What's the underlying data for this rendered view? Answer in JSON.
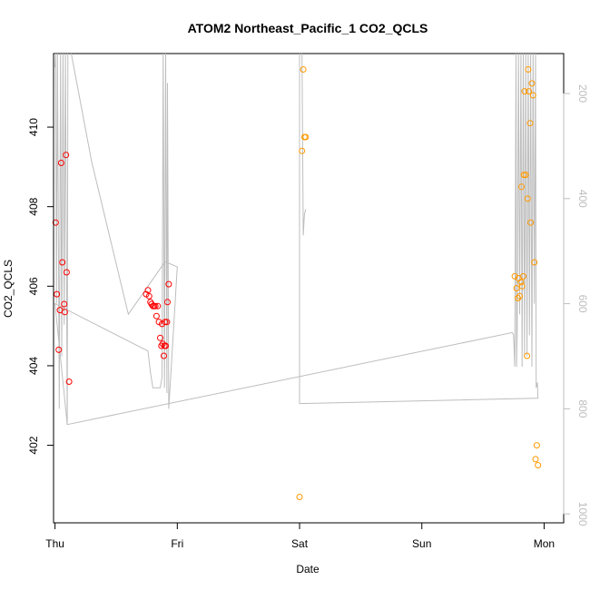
{
  "chart_data": {
    "type": "scatter",
    "title": "ATOM2 Northeast_Pacific_1 CO2_QCLS",
    "xlabel": "Date",
    "ylabel": "CO2_QCLS",
    "x_ticks": [
      "Thu",
      "Fri",
      "Sat",
      "Sun",
      "Mon"
    ],
    "xlim": [
      -0.012,
      4.16
    ],
    "ylim": [
      400.05,
      411.85
    ],
    "y_ticks": [
      402,
      404,
      406,
      408,
      410
    ],
    "y2_ticks": [
      200,
      400,
      600,
      800,
      1000
    ],
    "y2lim": [
      1017,
      124
    ],
    "colors": {
      "red": "#ff0000",
      "orange": "#ff9900",
      "gray": "#bdbdbd"
    },
    "series": [
      {
        "color": "red",
        "points": [
          [
            0.005,
            407.6
          ],
          [
            0.015,
            405.8
          ],
          [
            0.03,
            404.4
          ],
          [
            0.04,
            405.4
          ],
          [
            0.05,
            409.1
          ],
          [
            0.06,
            406.6
          ],
          [
            0.075,
            405.55
          ],
          [
            0.08,
            405.35
          ],
          [
            0.09,
            409.3
          ],
          [
            0.095,
            406.35
          ],
          [
            0.115,
            403.6
          ],
          [
            0.745,
            405.8
          ],
          [
            0.76,
            405.9
          ],
          [
            0.77,
            405.75
          ],
          [
            0.78,
            405.6
          ],
          [
            0.79,
            405.55
          ],
          [
            0.8,
            405.5
          ],
          [
            0.81,
            405.5
          ],
          [
            0.82,
            405.5
          ],
          [
            0.83,
            405.25
          ],
          [
            0.84,
            405.5
          ],
          [
            0.85,
            405.1
          ],
          [
            0.86,
            404.7
          ],
          [
            0.87,
            404.5
          ],
          [
            0.875,
            405.05
          ],
          [
            0.88,
            404.55
          ],
          [
            0.89,
            404.25
          ],
          [
            0.895,
            404.5
          ],
          [
            0.9,
            405.1
          ],
          [
            0.905,
            404.5
          ],
          [
            0.915,
            405.1
          ],
          [
            0.92,
            405.6
          ],
          [
            0.93,
            406.05
          ]
        ]
      },
      {
        "color": "orange",
        "points": [
          [
            2.0,
            400.7
          ],
          [
            2.02,
            409.4
          ],
          [
            2.03,
            411.45
          ],
          [
            2.04,
            409.75
          ],
          [
            2.05,
            409.75
          ],
          [
            3.76,
            406.25
          ],
          [
            3.775,
            405.95
          ],
          [
            3.785,
            405.7
          ],
          [
            3.79,
            406.2
          ],
          [
            3.8,
            405.75
          ],
          [
            3.81,
            406.1
          ],
          [
            3.815,
            408.5
          ],
          [
            3.82,
            406.0
          ],
          [
            3.83,
            406.25
          ],
          [
            3.835,
            408.8
          ],
          [
            3.84,
            410.9
          ],
          [
            3.85,
            408.8
          ],
          [
            3.86,
            404.25
          ],
          [
            3.865,
            408.2
          ],
          [
            3.87,
            411.45
          ],
          [
            3.875,
            410.9
          ],
          [
            3.885,
            410.1
          ],
          [
            3.89,
            407.6
          ],
          [
            3.9,
            411.1
          ],
          [
            3.91,
            410.8
          ],
          [
            3.92,
            406.6
          ],
          [
            3.93,
            401.65
          ],
          [
            3.94,
            402.0
          ],
          [
            3.95,
            401.5
          ]
        ]
      },
      {
        "color": "gray",
        "axis": "right",
        "points": [
          [
            0.0,
            150
          ],
          [
            0.005,
            120
          ],
          [
            0.012,
            600
          ],
          [
            0.02,
            120
          ],
          [
            0.035,
            800
          ],
          [
            0.045,
            120
          ],
          [
            0.055,
            700
          ],
          [
            0.065,
            120
          ],
          [
            0.075,
            640
          ],
          [
            0.085,
            120
          ],
          [
            0.1,
            830
          ],
          [
            0.105,
            120
          ],
          [
            0.13,
            120
          ],
          [
            0.3,
            330
          ],
          [
            0.6,
            620
          ],
          [
            0.9,
            520
          ],
          [
            1.0,
            530
          ],
          [
            0.93,
            800
          ],
          [
            0.92,
            180
          ],
          [
            0.915,
            770
          ],
          [
            0.905,
            120
          ],
          [
            0.895,
            760
          ],
          [
            0.885,
            120
          ],
          [
            0.875,
            740
          ],
          [
            0.86,
            760
          ],
          [
            0.85,
            760
          ],
          [
            0.845,
            760
          ],
          [
            0.83,
            760
          ],
          [
            0.82,
            760
          ],
          [
            0.8,
            760
          ],
          [
            0.78,
            730
          ],
          [
            0.76,
            690
          ],
          [
            0.0,
            600
          ],
          [
            0.1,
            830
          ],
          [
            3.74,
            655
          ],
          [
            3.75,
            660
          ],
          [
            3.76,
            720
          ],
          [
            3.77,
            120
          ],
          [
            3.775,
            720
          ],
          [
            3.78,
            650
          ],
          [
            3.79,
            120
          ],
          [
            3.8,
            620
          ],
          [
            3.81,
            120
          ],
          [
            3.82,
            720
          ],
          [
            3.83,
            120
          ],
          [
            3.84,
            700
          ],
          [
            3.85,
            120
          ],
          [
            3.86,
            700
          ],
          [
            3.87,
            120
          ],
          [
            3.88,
            660
          ],
          [
            3.89,
            120
          ],
          [
            3.9,
            720
          ],
          [
            3.91,
            120
          ],
          [
            3.92,
            600
          ],
          [
            3.93,
            120
          ],
          [
            3.935,
            760
          ],
          [
            3.945,
            750
          ],
          [
            3.95,
            780
          ],
          [
            3.95,
            780
          ],
          [
            3.93,
            780
          ],
          [
            2.0,
            790
          ],
          [
            2.0,
            700
          ],
          [
            2.0,
            120
          ],
          [
            2.02,
            120
          ],
          [
            2.03,
            470
          ],
          [
            2.04,
            430
          ],
          [
            2.05,
            420
          ]
        ]
      }
    ]
  }
}
